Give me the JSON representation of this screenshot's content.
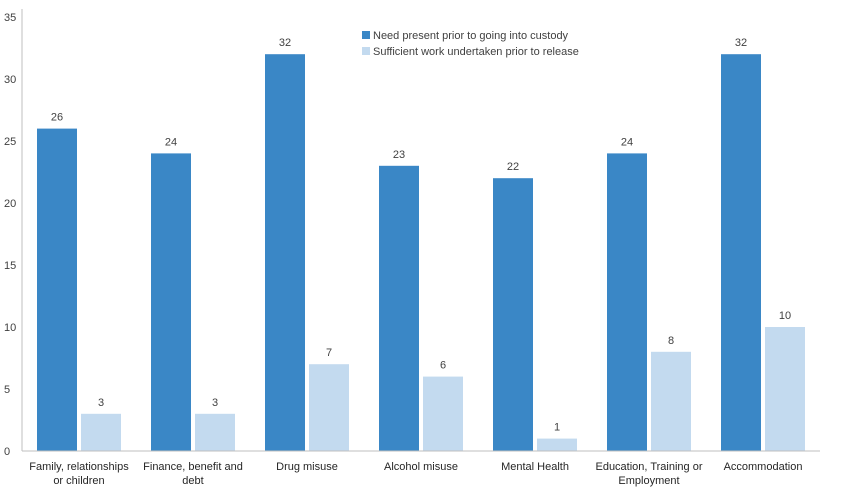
{
  "chart_data": {
    "type": "bar",
    "title": "",
    "xlabel": "",
    "ylabel": "",
    "ylim": [
      0,
      35
    ],
    "yticks": [
      0,
      5,
      10,
      15,
      20,
      25,
      30,
      35
    ],
    "grid": false,
    "legend_position": "top-center",
    "categories": [
      [
        "Family, relationships",
        "or children"
      ],
      [
        "Finance, benefit and",
        "debt"
      ],
      [
        "Drug misuse"
      ],
      [
        "Alcohol misuse"
      ],
      [
        "Mental Health"
      ],
      [
        "Education, Training or",
        "Employment"
      ],
      [
        "Accommodation"
      ]
    ],
    "series": [
      {
        "name": "Need present prior to going into custody",
        "color": "#3a87c6",
        "values": [
          26,
          24,
          32,
          23,
          22,
          24,
          32
        ]
      },
      {
        "name": "Sufficient work undertaken prior to release",
        "color": "#c3daef",
        "values": [
          3,
          3,
          7,
          6,
          1,
          8,
          10
        ]
      }
    ]
  }
}
